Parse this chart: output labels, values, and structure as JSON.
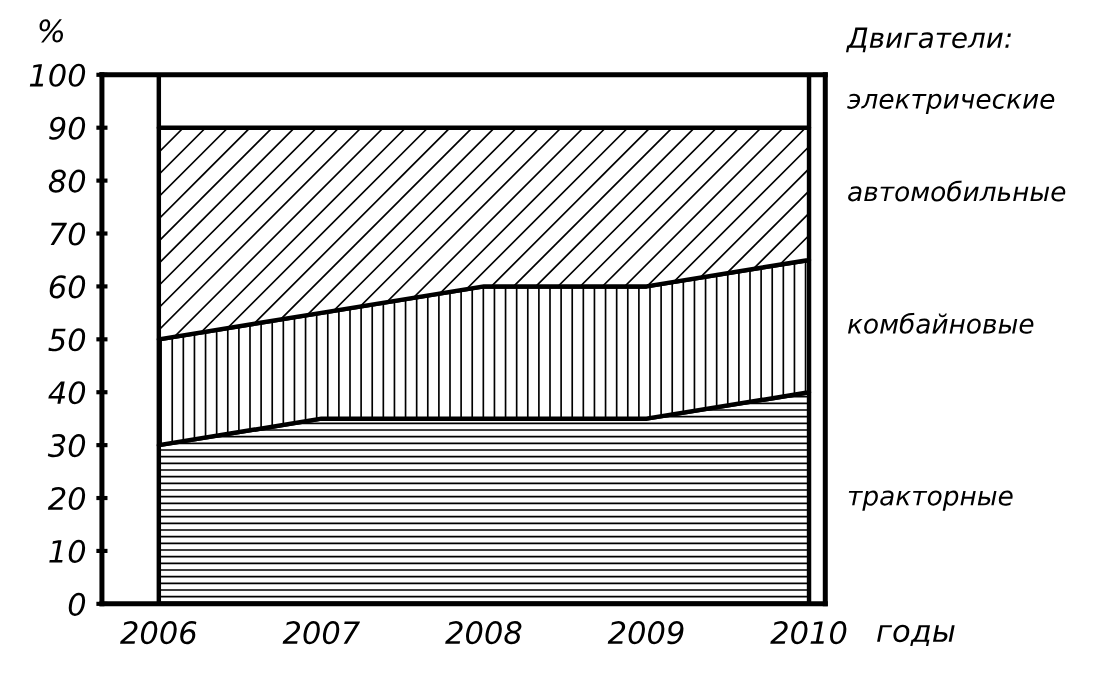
{
  "chart_data": {
    "type": "area",
    "stacked": true,
    "ylabel": "%",
    "xlabel": "годы",
    "legend_title": "Двигатели:",
    "legend": "right",
    "grid": false,
    "categories": [
      "2006",
      "2007",
      "2008",
      "2009",
      "2010"
    ],
    "ylim": [
      0,
      100
    ],
    "yticks": [
      0,
      10,
      20,
      30,
      40,
      50,
      60,
      70,
      80,
      90,
      100
    ],
    "series": [
      {
        "name": "тракторные",
        "color": "#000000",
        "values": [
          30,
          35,
          35,
          35,
          40
        ]
      },
      {
        "name": "комбайновые",
        "color": "#000000",
        "values": [
          20,
          20,
          25,
          25,
          25
        ]
      },
      {
        "name": "автомобильные",
        "color": "#000000",
        "values": [
          40,
          35,
          30,
          30,
          25
        ]
      },
      {
        "name": "электрические",
        "color": "#ffffff",
        "values": [
          10,
          10,
          10,
          10,
          10
        ]
      }
    ]
  }
}
